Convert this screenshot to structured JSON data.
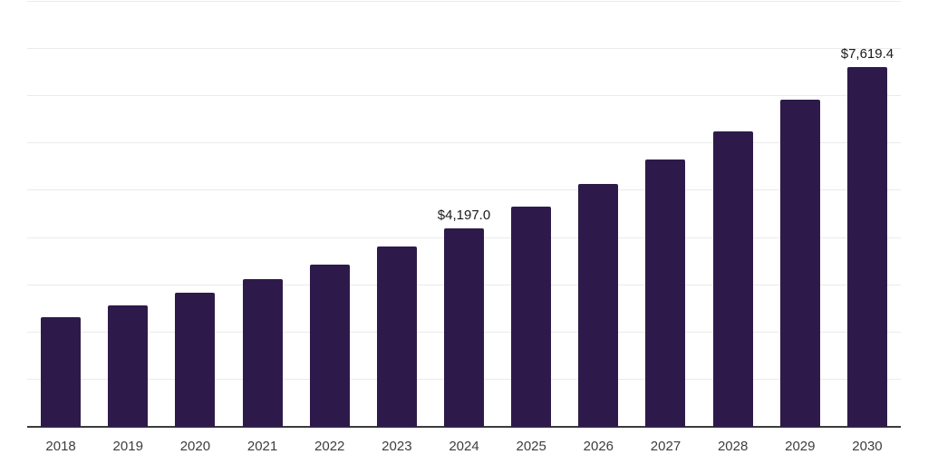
{
  "chart_data": {
    "type": "bar",
    "title": "",
    "xlabel": "",
    "ylabel": "",
    "categories": [
      "2018",
      "2019",
      "2020",
      "2021",
      "2022",
      "2023",
      "2024",
      "2025",
      "2026",
      "2027",
      "2028",
      "2029",
      "2030"
    ],
    "values": [
      2320,
      2570,
      2835,
      3125,
      3430,
      3815,
      4197.0,
      4655,
      5135,
      5655,
      6265,
      6920,
      7619.4
    ],
    "annotations": [
      {
        "category": "2024",
        "index": 6,
        "label": "$4,197.0"
      },
      {
        "category": "2030",
        "index": 12,
        "label": "$7,619.4"
      }
    ],
    "ylim": [
      0,
      9000
    ],
    "gridline_step": 1000,
    "grid": true,
    "legend_position": "none",
    "colors": {
      "bar": "#2E1A4A",
      "axis": "#3C3C3C",
      "gridline": "#EBEBEB",
      "tick_label": "#3D3D3D",
      "annotation": "#1A1A1A",
      "background": "#FFFFFF"
    }
  }
}
